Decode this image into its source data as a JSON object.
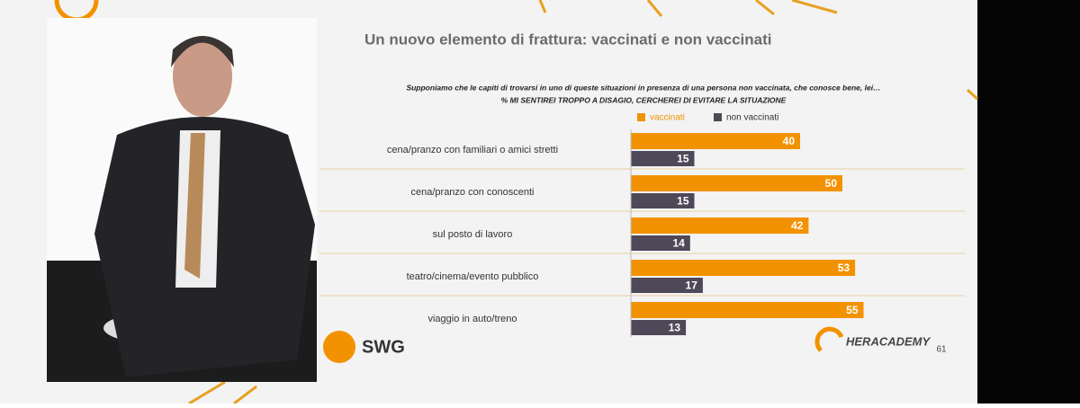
{
  "chart_data": {
    "type": "bar",
    "orientation": "horizontal",
    "title": "Un nuovo elemento di frattura: vaccinati e non vaccinati",
    "subtitle": [
      "Supponiamo che le capiti di trovarsi in uno di queste situazioni in presenza di una persona non vaccinata, che conosce bene, lei…",
      "% MI SENTIREI TROPPO A DISAGIO, CERCHEREI DI EVITARE LA SITUAZIONE"
    ],
    "categories": [
      "cena/pranzo con familiari o amici stretti",
      "cena/pranzo con conoscenti",
      "sul posto di lavoro",
      "teatro/cinema/evento pubblico",
      "viaggio in auto/treno"
    ],
    "series": [
      {
        "name": "vaccinati",
        "color": "#f39200",
        "values": [
          40,
          50,
          42,
          53,
          55
        ]
      },
      {
        "name": "non vaccinati",
        "color": "#4f4858",
        "values": [
          15,
          15,
          14,
          17,
          13
        ]
      }
    ],
    "legend": "top"
  },
  "slide": {
    "logo_left": "SWG",
    "logo_right": "HERACADEMY",
    "page_number": "61"
  }
}
